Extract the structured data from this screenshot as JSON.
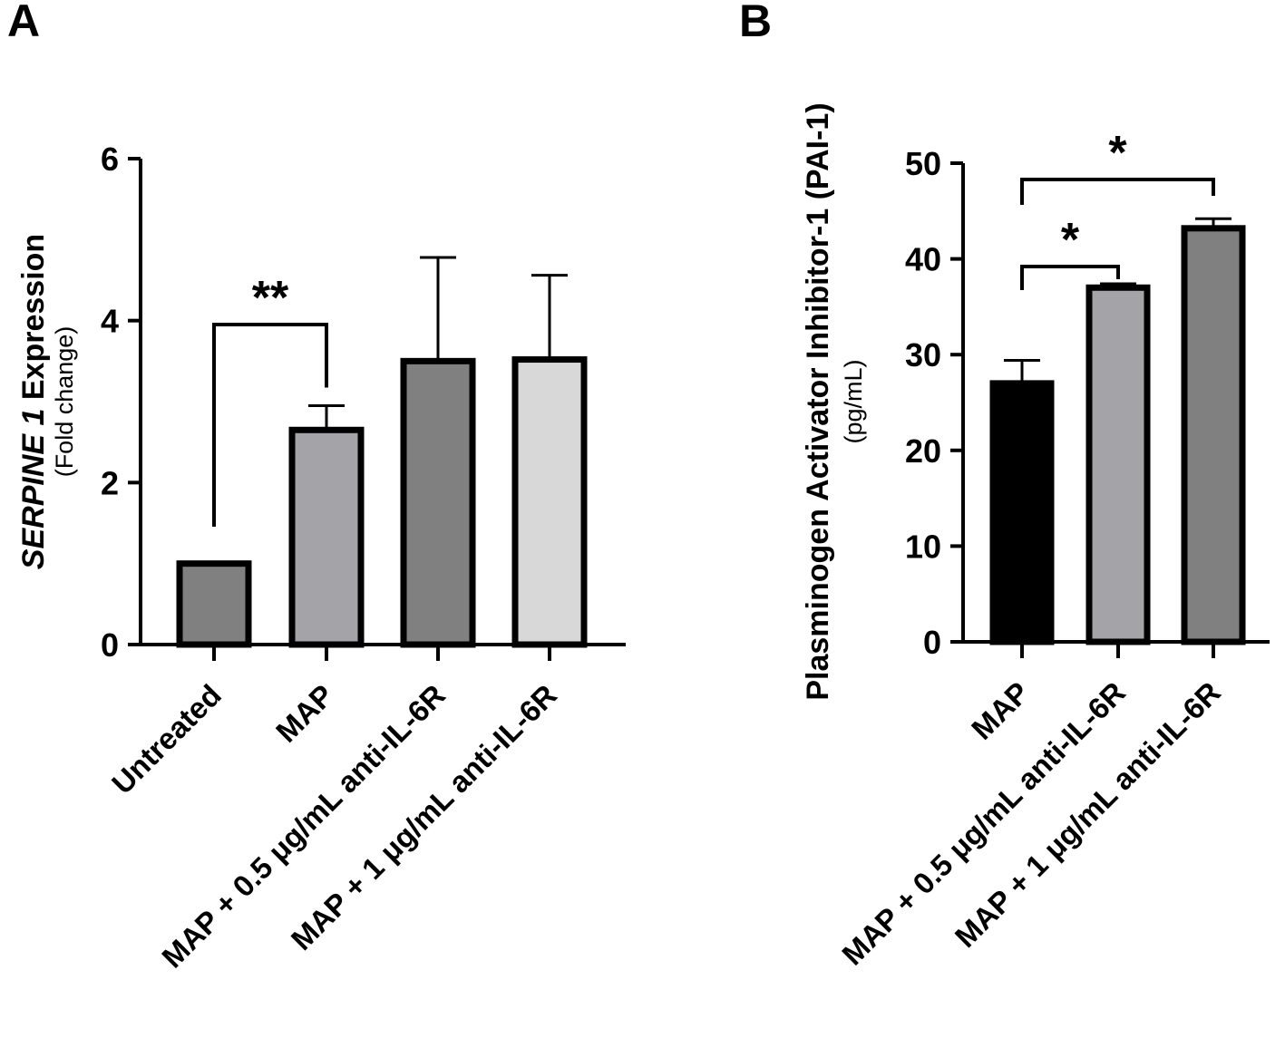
{
  "chart_data": [
    {
      "panel": "A",
      "type": "bar",
      "ylabel_main_italic": "SERPINE 1",
      "ylabel_main_rest": " Expression",
      "ylabel_sub": "(Fold change)",
      "ylim": [
        0,
        6
      ],
      "yticks": [
        "0",
        "2",
        "4",
        "6"
      ],
      "categories": [
        "Untreated",
        "MAP",
        "MAP + 0.5 μg/mL anti-IL-6R",
        "MAP + 1 μg/mL anti-IL-6R"
      ],
      "values": [
        1.0,
        2.65,
        3.5,
        3.52
      ],
      "errors": [
        0.0,
        0.3,
        1.28,
        1.04
      ],
      "colors": [
        "#808080",
        "#a3a3a8",
        "#808080",
        "#d8d8d8"
      ],
      "significance": [
        {
          "from": 0,
          "to": 1,
          "label": "**"
        }
      ]
    },
    {
      "panel": "B",
      "type": "bar",
      "ylabel_main": "Plasminogen Activator Inhibitor-1  (PAI-1)",
      "ylabel_sub": "(pg/mL)",
      "ylim": [
        0,
        50
      ],
      "yticks": [
        "0",
        "10",
        "20",
        "30",
        "40",
        "50"
      ],
      "categories": [
        "MAP",
        "MAP + 0.5 μg/mL anti-IL-6R",
        "MAP + 1 μg/mL anti-IL-6R"
      ],
      "values": [
        27.0,
        37.0,
        43.2
      ],
      "errors": [
        2.4,
        0.4,
        1.0
      ],
      "colors": [
        "#000000",
        "#a3a3a8",
        "#808080"
      ],
      "significance": [
        {
          "from": 0,
          "to": 1,
          "label": "*"
        },
        {
          "from": 0,
          "to": 2,
          "label": "*"
        }
      ]
    }
  ]
}
